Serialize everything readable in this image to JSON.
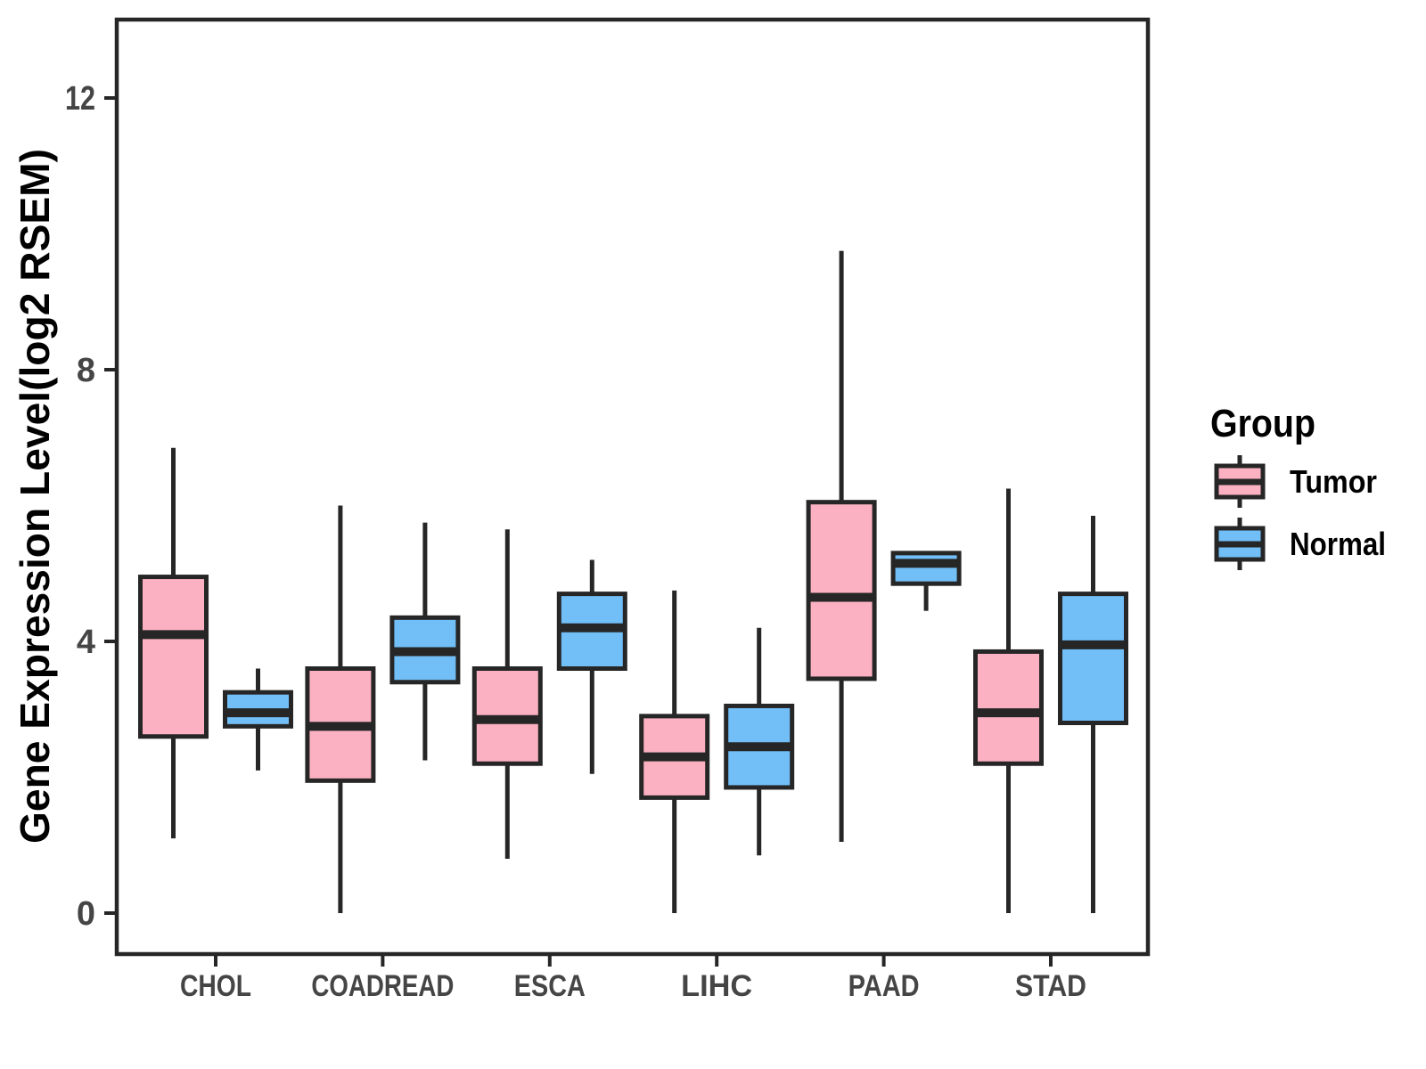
{
  "chart_data": {
    "type": "grouped_boxplot",
    "title": "",
    "y_axis": {
      "label": "Gene Expression Level(log2 RSEM)",
      "ticks": [
        0,
        4,
        8,
        12
      ],
      "range": [
        -0.6,
        13.2
      ],
      "grid": "off"
    },
    "x_axis": {
      "categories": [
        "CHOL",
        "COADREAD",
        "ESCA",
        "LIHC",
        "PAAD",
        "STAD"
      ]
    },
    "legend": {
      "title": "Group",
      "position": "right"
    },
    "style": {
      "box_border_color": "#262626",
      "axis_text_color": "#454545",
      "title_color": "#000000",
      "panel_background": "#ffffff"
    },
    "series": [
      {
        "name": "Tumor",
        "color": "#FBB1C2",
        "boxes": [
          {
            "category": "CHOL",
            "whisker_low": 1.1,
            "q1": 2.6,
            "median": 4.1,
            "q3": 4.95,
            "whisker_high": 6.85
          },
          {
            "category": "COADREAD",
            "whisker_low": 0.0,
            "q1": 1.95,
            "median": 2.75,
            "q3": 3.6,
            "whisker_high": 6.0
          },
          {
            "category": "ESCA",
            "whisker_low": 0.8,
            "q1": 2.2,
            "median": 2.85,
            "q3": 3.6,
            "whisker_high": 5.65
          },
          {
            "category": "LIHC",
            "whisker_low": 0.0,
            "q1": 1.7,
            "median": 2.3,
            "q3": 2.9,
            "whisker_high": 4.75
          },
          {
            "category": "PAAD",
            "whisker_low": 1.05,
            "q1": 3.45,
            "median": 4.65,
            "q3": 6.05,
            "whisker_high": 9.75
          },
          {
            "category": "STAD",
            "whisker_low": 0.0,
            "q1": 2.2,
            "median": 2.95,
            "q3": 3.85,
            "whisker_high": 6.25
          }
        ]
      },
      {
        "name": "Normal",
        "color": "#72BFF8",
        "boxes": [
          {
            "category": "CHOL",
            "whisker_low": 2.1,
            "q1": 2.75,
            "median": 2.95,
            "q3": 3.25,
            "whisker_high": 3.6
          },
          {
            "category": "COADREAD",
            "whisker_low": 2.25,
            "q1": 3.4,
            "median": 3.85,
            "q3": 4.35,
            "whisker_high": 5.75
          },
          {
            "category": "ESCA",
            "whisker_low": 2.05,
            "q1": 3.6,
            "median": 4.2,
            "q3": 4.7,
            "whisker_high": 5.2
          },
          {
            "category": "LIHC",
            "whisker_low": 0.85,
            "q1": 1.85,
            "median": 2.45,
            "q3": 3.05,
            "whisker_high": 4.2
          },
          {
            "category": "PAAD",
            "whisker_low": 4.45,
            "q1": 4.85,
            "median": 5.15,
            "q3": 5.3,
            "whisker_high": 5.3
          },
          {
            "category": "STAD",
            "whisker_low": 0.0,
            "q1": 2.8,
            "median": 3.95,
            "q3": 4.7,
            "whisker_high": 5.85
          }
        ]
      }
    ]
  }
}
